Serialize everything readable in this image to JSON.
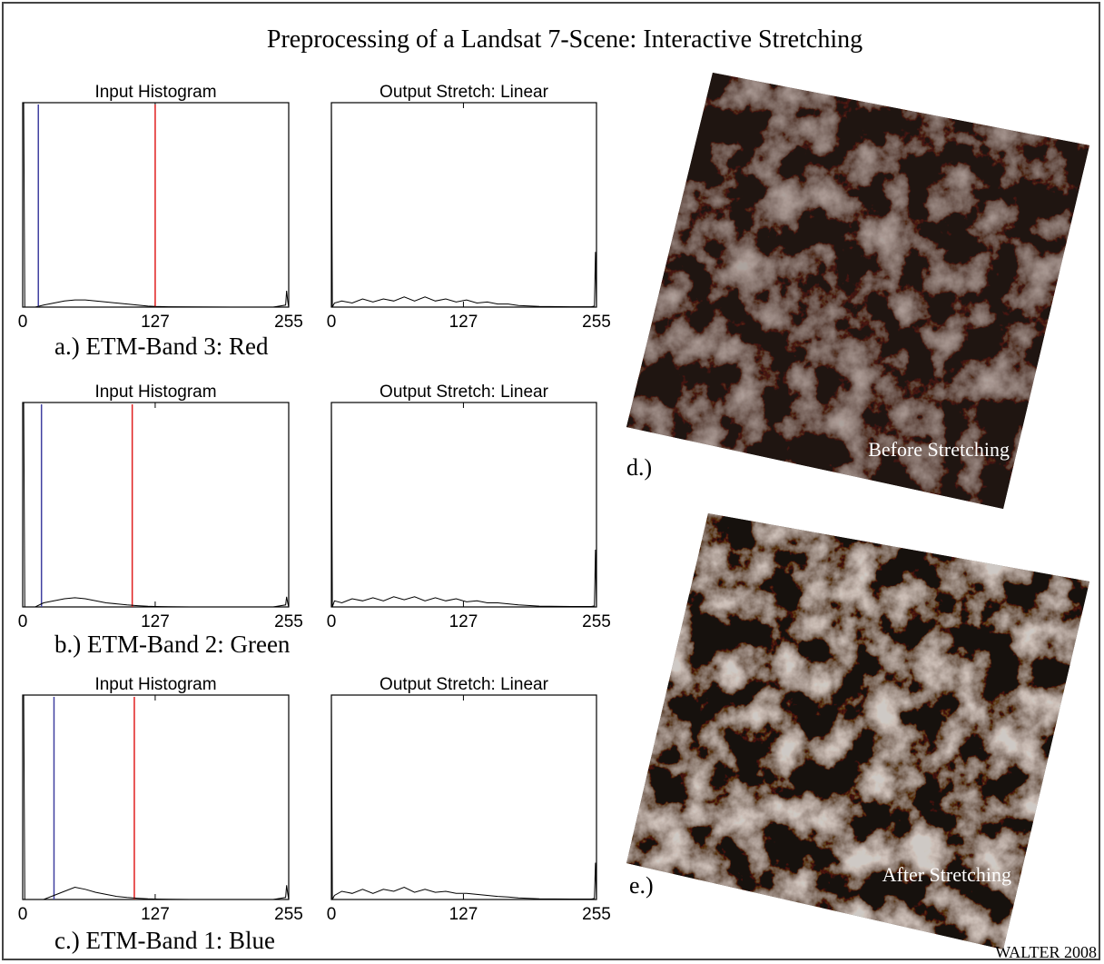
{
  "title": "Preprocessing of a Landsat 7-Scene: Interactive Stretching",
  "labels": [
    "a.) ETM-Band 3: Red",
    "b.) ETM-Band 2: Green",
    "c.) ETM-Band 1: Blue"
  ],
  "images": [
    {
      "caption": "Before Stretching",
      "label": "d.)"
    },
    {
      "caption": "After Stretching",
      "label": "e.)"
    }
  ],
  "credit": "WALTER 2008",
  "chart_data": [
    {
      "type": "line",
      "title": "Input Histogram",
      "xlim": [
        0,
        255
      ],
      "xticks": [
        0,
        127,
        255
      ],
      "ylim": [
        0,
        100
      ],
      "series": [
        {
          "color": "#000000",
          "x": [
            0,
            1,
            2,
            6,
            12,
            20,
            30,
            40,
            50,
            60,
            70,
            80,
            90,
            100,
            110,
            120,
            127,
            140,
            160,
            200,
            240,
            252,
            253,
            254,
            255
          ],
          "values": [
            100,
            100,
            0,
            0,
            0,
            1,
            2,
            3,
            3.5,
            3.5,
            3,
            2.5,
            2,
            1.5,
            1,
            0.5,
            0.3,
            0.2,
            0.1,
            0,
            0,
            1,
            8,
            3,
            0
          ]
        }
      ],
      "markers": [
        {
          "x": 15,
          "color": "#4040a0"
        },
        {
          "x": 127,
          "color": "#e02020"
        }
      ]
    },
    {
      "type": "line",
      "title": "Output Stretch: Linear",
      "xlim": [
        0,
        255
      ],
      "xticks": [
        0,
        127,
        255
      ],
      "ylim": [
        0,
        100
      ],
      "series": [
        {
          "color": "#000000",
          "x": [
            0,
            1,
            3,
            10,
            20,
            30,
            40,
            50,
            60,
            70,
            80,
            90,
            100,
            110,
            120,
            130,
            140,
            150,
            160,
            170,
            180,
            200,
            230,
            250,
            253,
            254,
            255
          ],
          "values": [
            100,
            0,
            2,
            3,
            2,
            4,
            2.5,
            4,
            3,
            5,
            3,
            5,
            3,
            4,
            2.5,
            3.5,
            2,
            2.5,
            1.5,
            1.5,
            0.8,
            0.3,
            0.2,
            0.2,
            0.5,
            27,
            0
          ]
        }
      ]
    },
    {
      "type": "line",
      "title": "Input Histogram",
      "xlim": [
        0,
        255
      ],
      "xticks": [
        0,
        127,
        255
      ],
      "ylim": [
        0,
        100
      ],
      "series": [
        {
          "color": "#000000",
          "x": [
            0,
            1,
            2,
            6,
            12,
            20,
            30,
            40,
            50,
            60,
            70,
            80,
            90,
            100,
            110,
            120,
            127,
            140,
            160,
            200,
            240,
            252,
            253,
            254,
            255
          ],
          "values": [
            100,
            100,
            0,
            0,
            0,
            2,
            3,
            4,
            4.5,
            4,
            3,
            2,
            1.5,
            1,
            0.6,
            0.3,
            0.2,
            0.1,
            0,
            0,
            0,
            1,
            5,
            2,
            0
          ]
        }
      ],
      "markers": [
        {
          "x": 18,
          "color": "#4040a0"
        },
        {
          "x": 105,
          "color": "#e02020"
        }
      ]
    },
    {
      "type": "line",
      "title": "Output Stretch: Linear",
      "xlim": [
        0,
        255
      ],
      "xticks": [
        0,
        127,
        255
      ],
      "ylim": [
        0,
        100
      ],
      "series": [
        {
          "color": "#000000",
          "x": [
            0,
            1,
            3,
            10,
            20,
            30,
            40,
            50,
            60,
            70,
            80,
            90,
            100,
            110,
            120,
            130,
            140,
            150,
            160,
            170,
            180,
            200,
            230,
            250,
            253,
            254,
            255
          ],
          "values": [
            100,
            0,
            3,
            2,
            4,
            3,
            4.5,
            3,
            5,
            3.5,
            5,
            3,
            4.5,
            3,
            4,
            2.5,
            3,
            2,
            2,
            1.5,
            1,
            0.4,
            0.2,
            0.2,
            0.5,
            28,
            0
          ]
        }
      ]
    },
    {
      "type": "line",
      "title": "Input Histogram",
      "xlim": [
        0,
        255
      ],
      "xticks": [
        0,
        127,
        255
      ],
      "ylim": [
        0,
        100
      ],
      "series": [
        {
          "color": "#000000",
          "x": [
            0,
            1,
            2,
            6,
            12,
            20,
            30,
            40,
            50,
            60,
            70,
            80,
            90,
            100,
            110,
            120,
            127,
            140,
            160,
            200,
            240,
            252,
            253,
            254,
            255
          ],
          "values": [
            100,
            100,
            0,
            0,
            0,
            0,
            2,
            4,
            6,
            5,
            3.5,
            2.5,
            1.5,
            1,
            0.6,
            0.3,
            0.2,
            0.1,
            0,
            0,
            0,
            1,
            7,
            3,
            0
          ]
        }
      ],
      "markers": [
        {
          "x": 30,
          "color": "#4040a0"
        },
        {
          "x": 107,
          "color": "#e02020"
        }
      ]
    },
    {
      "type": "line",
      "title": "Output Stretch: Linear",
      "xlim": [
        0,
        255
      ],
      "xticks": [
        0,
        127,
        255
      ],
      "ylim": [
        0,
        100
      ],
      "series": [
        {
          "color": "#000000",
          "x": [
            0,
            1,
            3,
            10,
            20,
            30,
            40,
            50,
            60,
            70,
            80,
            90,
            100,
            110,
            120,
            130,
            140,
            150,
            160,
            170,
            180,
            200,
            230,
            250,
            253,
            254,
            255
          ],
          "values": [
            100,
            0,
            2,
            4,
            3,
            5,
            3,
            5,
            4,
            6,
            3.5,
            5,
            3.5,
            4,
            3,
            3,
            2.5,
            2,
            1.5,
            1.2,
            0.8,
            0.3,
            0.2,
            0.2,
            0.5,
            18,
            0
          ]
        }
      ]
    }
  ]
}
